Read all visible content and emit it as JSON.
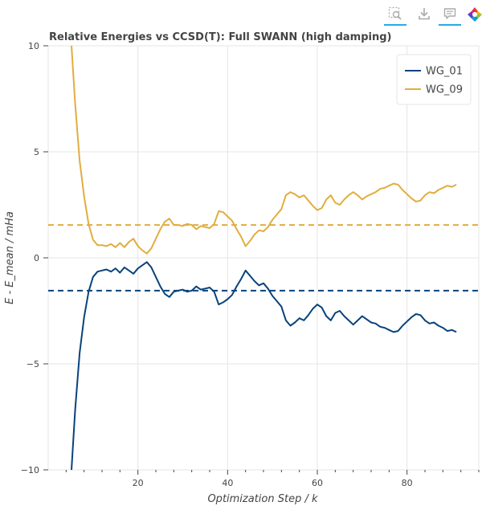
{
  "toolbar": {
    "tools": [
      {
        "name": "box-zoom",
        "active": true
      },
      {
        "name": "save",
        "active": false
      },
      {
        "name": "hover",
        "active": true
      },
      {
        "name": "bokeh-logo",
        "active": false
      }
    ],
    "colors": {
      "active": "#26aae1",
      "icon": "#aaaaaa"
    }
  },
  "chart_data": {
    "type": "line",
    "title": "Relative Energies vs CCSD(T): Full SWANN (high damping)",
    "xlabel": "Optimization Step / k",
    "ylabel": "E - E_mean / mHa",
    "xlim": [
      0,
      96
    ],
    "ylim": [
      -10,
      10
    ],
    "xticks": [
      20,
      40,
      60,
      80
    ],
    "yticks": [
      -10,
      -5,
      0,
      5,
      10
    ],
    "grid": true,
    "legend_position": "top-right",
    "series": [
      {
        "name": "WG_01",
        "color": "#08437c",
        "x": [
          5.2,
          6,
          7,
          8,
          9,
          10,
          11,
          12,
          13,
          14,
          15,
          16,
          17,
          18,
          19,
          20,
          21,
          22,
          23,
          24,
          25,
          26,
          27,
          28,
          29,
          30,
          31,
          32,
          33,
          34,
          35,
          36,
          37,
          38,
          39,
          40,
          41,
          42,
          43,
          44,
          45,
          46,
          47,
          48,
          49,
          50,
          51,
          52,
          53,
          54,
          55,
          56,
          57,
          58,
          59,
          60,
          61,
          62,
          63,
          64,
          65,
          66,
          67,
          68,
          69,
          70,
          71,
          72,
          73,
          74,
          75,
          76,
          77,
          78,
          79,
          80,
          81,
          82,
          83,
          84,
          85,
          86,
          87,
          88,
          89,
          90,
          91
        ],
        "values": [
          -10,
          -7.2,
          -4.5,
          -2.8,
          -1.6,
          -0.9,
          -0.65,
          -0.6,
          -0.55,
          -0.65,
          -0.5,
          -0.7,
          -0.45,
          -0.6,
          -0.75,
          -0.5,
          -0.35,
          -0.2,
          -0.45,
          -0.9,
          -1.35,
          -1.7,
          -1.85,
          -1.6,
          -1.55,
          -1.5,
          -1.6,
          -1.55,
          -1.35,
          -1.5,
          -1.45,
          -1.4,
          -1.6,
          -2.2,
          -2.1,
          -1.95,
          -1.75,
          -1.35,
          -1.0,
          -0.6,
          -0.85,
          -1.1,
          -1.3,
          -1.2,
          -1.45,
          -1.8,
          -2.05,
          -2.3,
          -2.95,
          -3.2,
          -3.05,
          -2.85,
          -2.95,
          -2.7,
          -2.4,
          -2.2,
          -2.35,
          -2.75,
          -2.95,
          -2.6,
          -2.5,
          -2.75,
          -2.95,
          -3.15,
          -2.95,
          -2.75,
          -2.9,
          -3.05,
          -3.1,
          -3.25,
          -3.3,
          -3.4,
          -3.5,
          -3.45,
          -3.2,
          -3.0,
          -2.8,
          -2.65,
          -2.7,
          -2.95,
          -3.1,
          -3.05,
          -3.2,
          -3.3,
          -3.45,
          -3.4,
          -3.5
        ]
      },
      {
        "name": "WG_09",
        "color": "#e1ad3f",
        "x": [
          5.2,
          6,
          7,
          8,
          9,
          10,
          11,
          12,
          13,
          14,
          15,
          16,
          17,
          18,
          19,
          20,
          21,
          22,
          23,
          24,
          25,
          26,
          27,
          28,
          29,
          30,
          31,
          32,
          33,
          34,
          35,
          36,
          37,
          38,
          39,
          40,
          41,
          42,
          43,
          44,
          45,
          46,
          47,
          48,
          49,
          50,
          51,
          52,
          53,
          54,
          55,
          56,
          57,
          58,
          59,
          60,
          61,
          62,
          63,
          64,
          65,
          66,
          67,
          68,
          69,
          70,
          71,
          72,
          73,
          74,
          75,
          76,
          77,
          78,
          79,
          80,
          81,
          82,
          83,
          84,
          85,
          86,
          87,
          88,
          89,
          90,
          91
        ],
        "values": [
          10,
          7.3,
          4.6,
          2.9,
          1.6,
          0.85,
          0.6,
          0.6,
          0.55,
          0.65,
          0.5,
          0.7,
          0.5,
          0.75,
          0.9,
          0.55,
          0.35,
          0.2,
          0.45,
          0.9,
          1.35,
          1.7,
          1.85,
          1.55,
          1.55,
          1.5,
          1.6,
          1.55,
          1.35,
          1.5,
          1.45,
          1.4,
          1.6,
          2.2,
          2.15,
          1.95,
          1.75,
          1.35,
          1.0,
          0.55,
          0.8,
          1.1,
          1.3,
          1.25,
          1.45,
          1.8,
          2.05,
          2.3,
          2.95,
          3.1,
          3.0,
          2.85,
          2.95,
          2.7,
          2.45,
          2.25,
          2.35,
          2.75,
          2.95,
          2.6,
          2.5,
          2.75,
          2.95,
          3.1,
          2.95,
          2.75,
          2.9,
          3.0,
          3.1,
          3.25,
          3.3,
          3.4,
          3.5,
          3.45,
          3.2,
          3.0,
          2.8,
          2.65,
          2.7,
          2.95,
          3.1,
          3.05,
          3.2,
          3.3,
          3.4,
          3.35,
          3.45
        ]
      }
    ],
    "reference_lines": [
      {
        "y": -1.55,
        "color": "#08437c",
        "style": "dashed"
      },
      {
        "y": 1.55,
        "color": "#e1ad3f",
        "style": "dashed"
      }
    ]
  }
}
